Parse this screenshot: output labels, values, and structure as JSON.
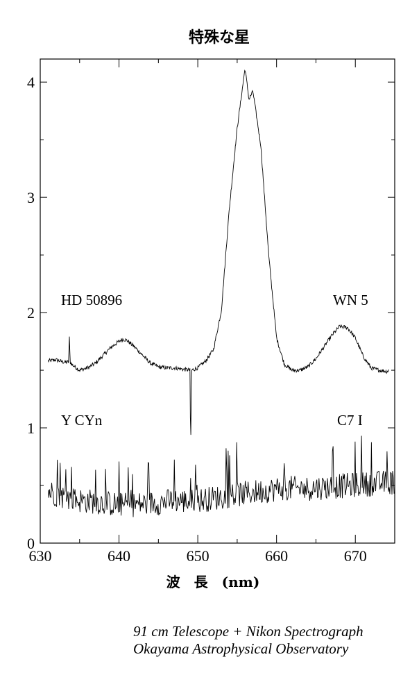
{
  "chart_data": {
    "type": "line",
    "title": "特殊な星",
    "xlabel": "波　長　(nm)",
    "ylabel": "",
    "xlim": [
      630,
      675
    ],
    "ylim": [
      0,
      4.2
    ],
    "x_ticks": [
      630,
      640,
      650,
      660,
      670
    ],
    "y_ticks": [
      0,
      1,
      2,
      3,
      4
    ],
    "grid": false,
    "series": [
      {
        "name": "HD 50896",
        "label_right": "WN 5",
        "style": "smooth",
        "points": [
          [
            631,
            1.58
          ],
          [
            632,
            1.59
          ],
          [
            633,
            1.57
          ],
          [
            633.6,
            1.57
          ],
          [
            633.7,
            1.78
          ],
          [
            633.8,
            1.57
          ],
          [
            634,
            1.55
          ],
          [
            635,
            1.5
          ],
          [
            636,
            1.52
          ],
          [
            637,
            1.56
          ],
          [
            638,
            1.63
          ],
          [
            639,
            1.7
          ],
          [
            640,
            1.75
          ],
          [
            640.5,
            1.77
          ],
          [
            641,
            1.76
          ],
          [
            642,
            1.7
          ],
          [
            643,
            1.63
          ],
          [
            644,
            1.56
          ],
          [
            645,
            1.53
          ],
          [
            646,
            1.52
          ],
          [
            647,
            1.52
          ],
          [
            648,
            1.51
          ],
          [
            649,
            1.5
          ],
          [
            649.1,
            0.8
          ],
          [
            649.2,
            1.5
          ],
          [
            650,
            1.52
          ],
          [
            651,
            1.58
          ],
          [
            652,
            1.68
          ],
          [
            653,
            2.02
          ],
          [
            654,
            2.9
          ],
          [
            655,
            3.6
          ],
          [
            656,
            4.12
          ],
          [
            656.5,
            3.85
          ],
          [
            657,
            3.92
          ],
          [
            658,
            3.45
          ],
          [
            659,
            2.5
          ],
          [
            660,
            1.78
          ],
          [
            661,
            1.55
          ],
          [
            662,
            1.5
          ],
          [
            663,
            1.5
          ],
          [
            664,
            1.53
          ],
          [
            665,
            1.6
          ],
          [
            666,
            1.7
          ],
          [
            667,
            1.8
          ],
          [
            668,
            1.88
          ],
          [
            669,
            1.87
          ],
          [
            670,
            1.78
          ],
          [
            671,
            1.62
          ],
          [
            672,
            1.52
          ],
          [
            673,
            1.5
          ],
          [
            674,
            1.49
          ],
          [
            674.3,
            1.5
          ]
        ]
      },
      {
        "name": "Y CYn",
        "label_right": "C7 I",
        "style": "noisy",
        "points": [
          [
            631,
            0.45
          ],
          [
            633,
            0.4
          ],
          [
            635,
            0.37
          ],
          [
            637,
            0.36
          ],
          [
            639,
            0.34
          ],
          [
            641,
            0.33
          ],
          [
            643,
            0.34
          ],
          [
            645,
            0.35
          ],
          [
            647,
            0.37
          ],
          [
            649,
            0.36
          ],
          [
            651,
            0.38
          ],
          [
            653,
            0.4
          ],
          [
            655,
            0.42
          ],
          [
            657,
            0.44
          ],
          [
            659,
            0.46
          ],
          [
            661,
            0.48
          ],
          [
            663,
            0.47
          ],
          [
            665,
            0.48
          ],
          [
            667,
            0.49
          ],
          [
            669,
            0.5
          ],
          [
            671,
            0.51
          ],
          [
            673,
            0.52
          ],
          [
            675,
            0.53
          ]
        ]
      }
    ],
    "annotations": {
      "left_top": "HD 50896",
      "right_top": "WN 5",
      "left_bottom": "Y CYn",
      "right_bottom": "C7 I"
    }
  },
  "credit_line_1": "91 cm Telescope + Nikon Spectrograph",
  "credit_line_2": "Okayama Astrophysical Observatory"
}
